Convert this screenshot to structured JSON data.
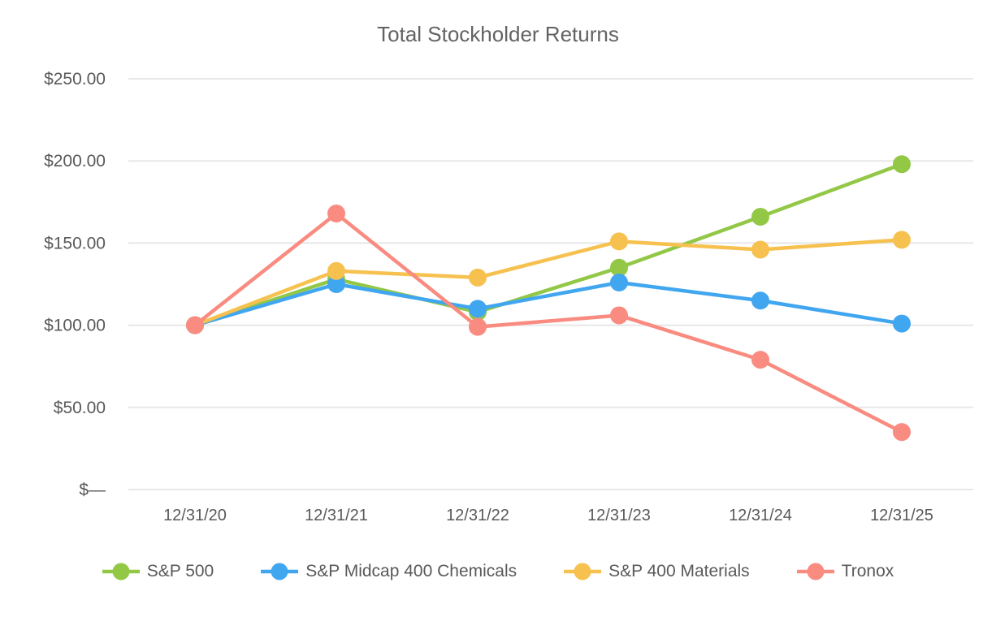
{
  "chart_data": {
    "type": "line",
    "title": "Total Stockholder Returns",
    "categories": [
      "12/31/20",
      "12/31/21",
      "12/31/22",
      "12/31/23",
      "12/31/24",
      "12/31/25"
    ],
    "series": [
      {
        "name": "S&P 500",
        "color": "#92C846",
        "values": [
          100,
          128,
          108,
          135,
          166,
          198
        ]
      },
      {
        "name": "S&P Midcap 400 Chemicals",
        "color": "#41A6F0",
        "values": [
          100,
          125,
          110,
          126,
          115,
          101
        ]
      },
      {
        "name": "S&P 400 Materials",
        "color": "#F6C14E",
        "values": [
          100,
          133,
          129,
          151,
          146,
          152
        ]
      },
      {
        "name": "Tronox",
        "color": "#F98B80",
        "values": [
          100,
          168,
          99,
          106,
          79,
          35
        ]
      }
    ],
    "y_ticks": [
      {
        "value": 250,
        "label": "$250.00"
      },
      {
        "value": 200,
        "label": "$200.00"
      },
      {
        "value": 150,
        "label": "$150.00"
      },
      {
        "value": 100,
        "label": "$100.00"
      },
      {
        "value": 50,
        "label": "$50.00"
      },
      {
        "value": 0,
        "label": "$—"
      }
    ],
    "ylim": [
      0,
      250
    ],
    "grid": true,
    "legend_position": "bottom",
    "marker": "circle",
    "text_color": "#595959",
    "grid_color": "#E7E7E7"
  }
}
